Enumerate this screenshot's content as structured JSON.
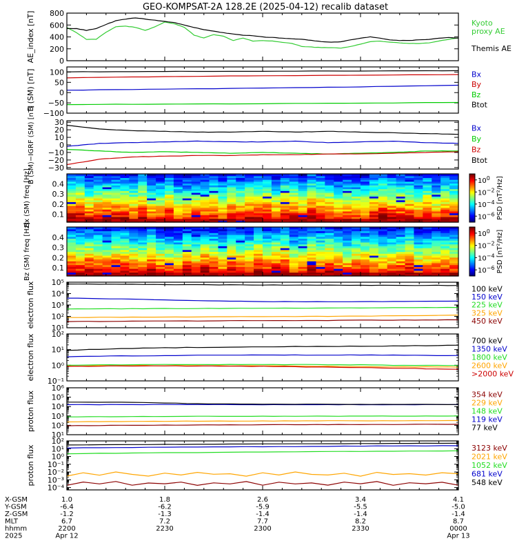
{
  "title": "GEO-KOMPSAT-2A 128.2E (2025-04-12) recalib dataset",
  "x_axis": {
    "ticks_per_interval": 5,
    "rows": [
      {
        "label": "X-GSM",
        "values": [
          "1.0",
          "1.8",
          "2.6",
          "3.4",
          "4.1"
        ]
      },
      {
        "label": "Y-GSM",
        "values": [
          "-6.4",
          "-6.2",
          "-5.9",
          "-5.5",
          "-5.0"
        ]
      },
      {
        "label": "Z-GSM",
        "values": [
          "-1.2",
          "-1.3",
          "-1.4",
          "-1.4",
          "-1.4"
        ]
      },
      {
        "label": "MLT",
        "values": [
          "6.7",
          "7.2",
          "7.7",
          "8.2",
          "8.7"
        ]
      },
      {
        "label": "hhmm",
        "values": [
          "2200",
          "2230",
          "2300",
          "2330",
          "0000"
        ]
      },
      {
        "label": "2025",
        "values": [
          "Apr 12",
          "",
          "",
          "",
          "Apr 13"
        ]
      }
    ]
  },
  "colors": {
    "black": "#000000",
    "blue": "#0000cc",
    "green": "#00cc00",
    "red": "#cc0000",
    "bright_green": "#22dd22",
    "orange": "#ffa500",
    "dark_red": "#8b0000",
    "kyoto_green": "#33cc33"
  },
  "chart_data": [
    {
      "type": "line",
      "ylabel": "AE_index [nT]",
      "ylim": [
        0,
        800
      ],
      "yscale": "linear",
      "ticks": [
        0,
        200,
        400,
        600,
        800
      ],
      "tick_labels": [
        "0",
        "200",
        "400",
        "600",
        "800"
      ],
      "grid": false,
      "legend_placement": "right",
      "x": [
        0,
        3,
        6,
        9,
        12,
        15,
        18,
        21,
        24,
        27,
        30,
        33,
        36,
        39,
        42,
        45,
        48,
        51,
        54,
        57,
        60,
        63,
        66,
        69,
        72,
        75,
        78,
        81,
        84,
        87,
        90,
        93,
        96,
        99,
        102,
        105,
        108,
        111,
        114,
        117,
        120
      ],
      "series": [
        {
          "name": "Kyoto proxy AE",
          "color": "#33cc33",
          "legend_lines": [
            "Kyoto",
            "proxy AE"
          ],
          "values": [
            560,
            470,
            360,
            360,
            480,
            570,
            580,
            560,
            510,
            570,
            650,
            620,
            560,
            430,
            380,
            440,
            410,
            340,
            380,
            330,
            340,
            330,
            310,
            290,
            240,
            230,
            220,
            220,
            210,
            240,
            280,
            320,
            330,
            310,
            300,
            290,
            290,
            300,
            330,
            360,
            380
          ]
        },
        {
          "name": "Themis AE",
          "color": "#000000",
          "legend_lines": [
            "Themis AE"
          ],
          "values": [
            540,
            540,
            510,
            540,
            610,
            670,
            700,
            720,
            700,
            680,
            660,
            640,
            600,
            560,
            520,
            500,
            470,
            450,
            430,
            420,
            400,
            390,
            380,
            370,
            360,
            340,
            320,
            310,
            320,
            350,
            380,
            400,
            380,
            350,
            340,
            340,
            350,
            360,
            380,
            390,
            380
          ]
        }
      ]
    },
    {
      "type": "line",
      "ylabel": "B (SM) [nT]",
      "ylim": [
        -100,
        125
      ],
      "yscale": "linear",
      "ticks": [
        -100,
        -50,
        0,
        50,
        100
      ],
      "tick_labels": [
        "−100",
        "−50",
        "0",
        "50",
        "100"
      ],
      "grid": false,
      "legend_placement": "right",
      "x": [
        0,
        30,
        60,
        90,
        120
      ],
      "series": [
        {
          "name": "Bx",
          "color": "#0000cc",
          "values": [
            12,
            17,
            22,
            28,
            36
          ]
        },
        {
          "name": "By",
          "color": "#cc0000",
          "values": [
            72,
            78,
            82,
            85,
            88
          ]
        },
        {
          "name": "Bz",
          "color": "#00cc00",
          "values": [
            -58,
            -56,
            -54,
            -51,
            -48
          ]
        },
        {
          "name": "Btot",
          "color": "#000000",
          "values": [
            101,
            103,
            104,
            105,
            107
          ]
        }
      ]
    },
    {
      "type": "line",
      "ylabel": "B (SM)−IGRF (SM) [nT]",
      "ylim": [
        -32,
        32
      ],
      "yscale": "linear",
      "ticks": [
        -30,
        -20,
        -10,
        0,
        10,
        20,
        30
      ],
      "tick_labels": [
        "−30",
        "−20",
        "−10",
        "0",
        "10",
        "20",
        "30"
      ],
      "grid": false,
      "legend_placement": "right",
      "x": [
        0,
        10,
        20,
        30,
        40,
        50,
        60,
        70,
        80,
        90,
        100,
        110,
        120
      ],
      "series": [
        {
          "name": "Bx",
          "color": "#0000cc",
          "values": [
            -2,
            2,
            3,
            4,
            5,
            4,
            4,
            5,
            3,
            4,
            5,
            3,
            2
          ]
        },
        {
          "name": "By",
          "color": "#00cc00",
          "values": [
            -6,
            -8,
            -10,
            -9,
            -10,
            -11,
            -10,
            -11,
            -12,
            -11,
            -10,
            -8,
            -8
          ]
        },
        {
          "name": "Bz",
          "color": "#cc0000",
          "values": [
            -26,
            -19,
            -16,
            -15,
            -14,
            -14,
            -13,
            -13,
            -12,
            -12,
            -11,
            -10,
            -9
          ]
        },
        {
          "name": "Btot",
          "color": "#000000",
          "values": [
            26,
            21,
            19,
            18,
            17,
            17,
            18,
            17,
            18,
            17,
            16,
            15,
            14
          ]
        }
      ]
    },
    {
      "type": "heatmap",
      "ylabel": "Bx (SM) freq [Hz]",
      "ylim": [
        0.02,
        0.5
      ],
      "yscale": "linear",
      "ticks": [
        0.1,
        0.2,
        0.3,
        0.4
      ],
      "tick_labels": [
        "0.1",
        "0.2",
        "0.3",
        "0.4"
      ],
      "colorbar_label": "PSD [nT²/Hz]",
      "colorbar_ticks": [
        "10⁰",
        "10⁻²",
        "10⁻⁴",
        "10⁻⁶"
      ],
      "colorbar_exponents": [
        0,
        -2,
        -4,
        -6
      ],
      "clim_exponents": [
        -7,
        1
      ]
    },
    {
      "type": "heatmap",
      "ylabel": "Bz (SM) freq [Hz]",
      "ylim": [
        0.02,
        0.5
      ],
      "yscale": "linear",
      "ticks": [
        0.1,
        0.2,
        0.3,
        0.4
      ],
      "tick_labels": [
        "0.1",
        "0.2",
        "0.3",
        "0.4"
      ],
      "colorbar_label": "PSD [nT²/Hz]",
      "colorbar_ticks": [
        "10⁰",
        "10⁻²",
        "10⁻⁴",
        "10⁻⁶"
      ],
      "colorbar_exponents": [
        0,
        -2,
        -4,
        -6
      ],
      "clim_exponents": [
        -7,
        1
      ]
    },
    {
      "type": "line",
      "ylabel": "electron flux",
      "ylim": [
        10,
        100000
      ],
      "yscale": "log",
      "ticks": [
        10,
        100,
        1000,
        10000,
        100000
      ],
      "tick_labels": [
        "10¹",
        "10²",
        "10³",
        "10⁴",
        "10⁵"
      ],
      "grid": false,
      "legend_placement": "right",
      "x": [
        0,
        20,
        40,
        60,
        80,
        100,
        120
      ],
      "series": [
        {
          "name": "100 keV",
          "color": "#000000",
          "values": [
            70000,
            65000,
            60000,
            57000,
            55000,
            53000,
            52000
          ]
        },
        {
          "name": "150 keV",
          "color": "#0000cc",
          "values": [
            4000,
            3200,
            2400,
            2000,
            1900,
            2000,
            2200
          ]
        },
        {
          "name": "225 keV",
          "color": "#22dd22",
          "values": [
            450,
            470,
            490,
            520,
            540,
            570,
            600
          ]
        },
        {
          "name": "325 keV",
          "color": "#ffa500",
          "values": [
            80,
            85,
            90,
            95,
            100,
            110,
            130
          ]
        },
        {
          "name": "450 keV",
          "color": "#8b0000",
          "values": [
            35,
            37,
            40,
            42,
            44,
            47,
            50
          ]
        }
      ]
    },
    {
      "type": "line",
      "ylabel": "electron flux",
      "ylim": [
        0.1,
        100
      ],
      "yscale": "log",
      "ticks": [
        0.1,
        1,
        10,
        100
      ],
      "tick_labels": [
        "10⁻¹",
        "10⁰",
        "10¹",
        "10²"
      ],
      "grid": false,
      "legend_placement": "right",
      "x": [
        0,
        20,
        40,
        60,
        80,
        100,
        120
      ],
      "series": [
        {
          "name": "700 keV",
          "color": "#000000",
          "values": [
            9,
            12,
            14,
            15,
            16,
            17,
            19
          ]
        },
        {
          "name": "1350 keV",
          "color": "#0000cc",
          "values": [
            3.5,
            4,
            4.3,
            4.5,
            4.5,
            4.4,
            4.2
          ]
        },
        {
          "name": "1800 keV",
          "color": "#22dd22",
          "values": [
            1,
            1.1,
            1.1,
            1.1,
            1.1,
            1.0,
            0.95
          ]
        },
        {
          "name": "2600 keV",
          "color": "#ffa500",
          "values": [
            0.9,
            0.95,
            0.95,
            0.9,
            0.85,
            0.8,
            0.75
          ]
        },
        {
          "name": ">2000 keV",
          "color": "#cc0000",
          "values": [
            0.85,
            0.9,
            0.9,
            0.85,
            0.75,
            0.65,
            0.55
          ]
        }
      ]
    },
    {
      "type": "line",
      "ylabel": "proton flux",
      "ylim": [
        10,
        1000000
      ],
      "yscale": "log",
      "ticks": [
        10,
        100,
        1000,
        10000,
        100000,
        1000000
      ],
      "tick_labels": [
        "10¹",
        "10²",
        "10³",
        "10⁴",
        "10⁵",
        "10⁶"
      ],
      "grid": false,
      "legend_placement": "right",
      "x": [
        0,
        20,
        40,
        60,
        80,
        100,
        120
      ],
      "series": [
        {
          "name": "354 keV",
          "color": "#8b0000",
          "values": [
            90,
            100,
            110,
            115,
            120,
            125,
            130
          ]
        },
        {
          "name": "229 keV",
          "color": "#ffa500",
          "values": [
            230,
            260,
            280,
            290,
            300,
            310,
            320
          ]
        },
        {
          "name": "148 keV",
          "color": "#22dd22",
          "values": [
            800,
            850,
            900,
            920,
            940,
            960,
            1000
          ]
        },
        {
          "name": "119 keV",
          "color": "#0000cc",
          "values": [
            16000,
            16000,
            16000,
            16000,
            16000,
            16000,
            16000
          ]
        },
        {
          "name": "77 keV",
          "color": "#000000",
          "values": [
            30000,
            28000,
            20000,
            18000,
            17500,
            17000,
            16500
          ]
        }
      ]
    },
    {
      "type": "line",
      "ylabel": "proton flux",
      "ylim": [
        5e-05,
        100
      ],
      "yscale": "log",
      "ticks": [
        0.0001,
        0.001,
        0.01,
        0.1,
        1,
        10,
        100
      ],
      "tick_labels": [
        "10⁻⁴",
        "10⁻³",
        "10⁻²",
        "10⁻¹",
        "10⁰",
        "10¹",
        "10²"
      ],
      "grid": false,
      "legend_placement": "right",
      "x": [
        0,
        5,
        10,
        15,
        20,
        25,
        30,
        35,
        40,
        45,
        50,
        55,
        60,
        65,
        70,
        75,
        80,
        85,
        90,
        95,
        100,
        105,
        110,
        115,
        120
      ],
      "series": [
        {
          "name": "3123 keV",
          "color": "#8b0000",
          "values": [
            0.0002,
            0.0005,
            0.0003,
            0.0006,
            0.0002,
            0.0004,
            0.0003,
            0.0005,
            0.0002,
            0.0004,
            0.0003,
            0.0006,
            0.0002,
            0.0005,
            0.0003,
            0.0004,
            0.0002,
            0.0005,
            0.0003,
            0.0006,
            0.0002,
            0.0004,
            0.0003,
            0.0005,
            0.0002
          ]
        },
        {
          "name": "2021 keV",
          "color": "#ffa500",
          "values": [
            0.003,
            0.008,
            0.004,
            0.01,
            0.005,
            0.003,
            0.007,
            0.004,
            0.009,
            0.005,
            0.006,
            0.003,
            0.008,
            0.004,
            0.01,
            0.005,
            0.004,
            0.007,
            0.003,
            0.009,
            0.005,
            0.006,
            0.004,
            0.008,
            0.006
          ]
        },
        {
          "name": "1052 keV",
          "color": "#22dd22",
          "values": [
            2.2,
            2.4,
            2.5,
            2.6,
            2.7,
            2.9,
            3.0,
            3.1,
            3.2,
            3.4,
            3.5,
            3.6,
            3.8,
            3.9,
            4.0,
            4.1,
            4.2,
            4.4,
            4.5,
            4.6,
            4.8,
            4.9,
            5.0,
            5.2,
            5.4
          ]
        },
        {
          "name": "681 keV",
          "color": "#0000cc",
          "values": [
            12,
            13,
            13,
            14,
            14,
            15,
            15,
            16,
            16,
            17,
            17,
            18,
            18,
            19,
            19,
            20,
            20,
            21,
            21,
            22,
            22,
            23,
            23,
            24,
            24
          ]
        },
        {
          "name": "548 keV",
          "color": "#000000",
          "values": [
            30,
            31,
            32,
            33,
            34,
            35,
            35,
            36,
            37,
            38,
            39,
            40,
            40,
            41,
            42,
            43,
            44,
            45,
            46,
            46,
            47,
            48,
            49,
            50,
            50
          ]
        }
      ]
    }
  ]
}
